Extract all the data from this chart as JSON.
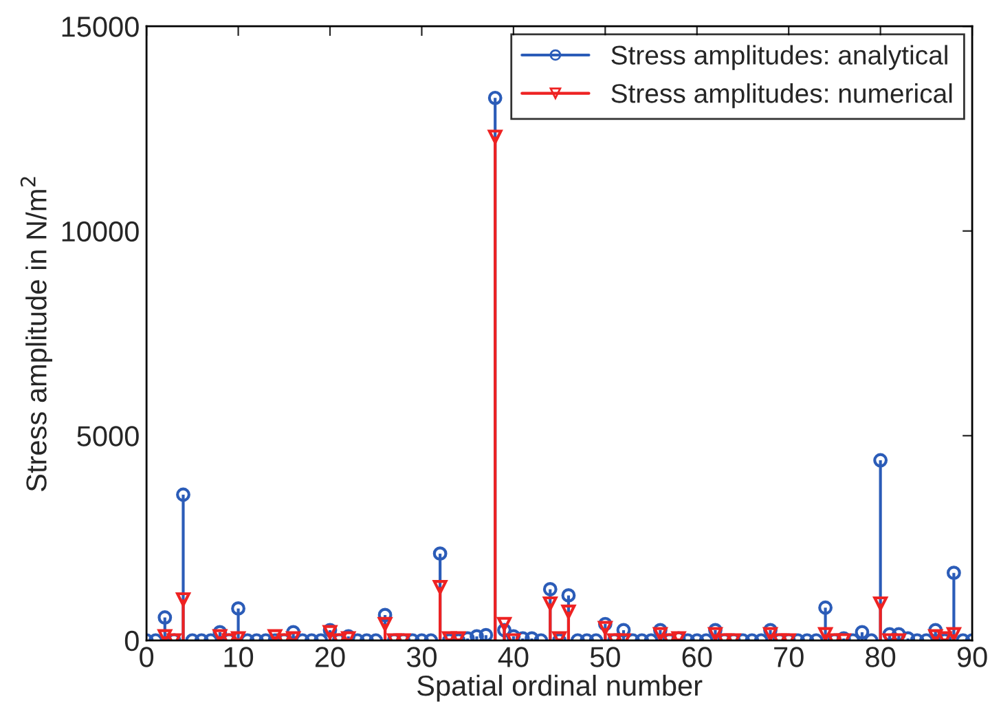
{
  "chart_data": {
    "type": "lollipop",
    "xlabel": "Spatial ordinal number",
    "ylabel": "Stress amplitude in N/m$^{2}$",
    "xlim": [
      0,
      90
    ],
    "xticks": [
      0,
      10,
      20,
      30,
      40,
      50,
      60,
      70,
      80,
      90
    ],
    "ylim": [
      0,
      15000
    ],
    "yticks": [
      0,
      5000,
      10000,
      15000
    ],
    "grid": false,
    "legend": "top right",
    "series": [
      {
        "name": "Stress amplitudes: analytical",
        "color": "#2b5cb8",
        "marker": "circle",
        "x": [
          0,
          1,
          2,
          3,
          4,
          5,
          6,
          7,
          8,
          9,
          10,
          11,
          12,
          13,
          14,
          15,
          16,
          17,
          18,
          19,
          20,
          21,
          22,
          23,
          24,
          25,
          26,
          27,
          28,
          29,
          30,
          31,
          32,
          33,
          34,
          35,
          36,
          37,
          38,
          39,
          40,
          41,
          42,
          43,
          44,
          45,
          46,
          47,
          48,
          49,
          50,
          51,
          52,
          53,
          54,
          55,
          56,
          57,
          58,
          59,
          60,
          61,
          62,
          63,
          64,
          65,
          66,
          67,
          68,
          69,
          70,
          71,
          72,
          73,
          74,
          75,
          76,
          77,
          78,
          79,
          80,
          81,
          82,
          83,
          84,
          85,
          86,
          87,
          88,
          89,
          90
        ],
        "values": [
          0,
          0,
          560,
          0,
          3560,
          0,
          0,
          0,
          200,
          0,
          780,
          0,
          0,
          0,
          0,
          0,
          200,
          0,
          0,
          0,
          250,
          0,
          100,
          0,
          0,
          0,
          620,
          0,
          0,
          0,
          0,
          0,
          2120,
          0,
          0,
          50,
          100,
          130,
          13250,
          250,
          100,
          50,
          50,
          0,
          1250,
          0,
          1100,
          0,
          0,
          0,
          400,
          0,
          250,
          0,
          0,
          0,
          250,
          0,
          50,
          0,
          0,
          0,
          250,
          0,
          0,
          0,
          0,
          0,
          250,
          0,
          0,
          0,
          0,
          0,
          800,
          0,
          50,
          0,
          200,
          0,
          4400,
          150,
          150,
          50,
          0,
          0,
          250,
          0,
          1650,
          0,
          0
        ]
      },
      {
        "name": "Stress amplitudes: numerical",
        "color": "#ee2222",
        "marker": "triangle",
        "x": [
          2,
          3,
          4,
          8,
          9,
          10,
          14,
          15,
          16,
          20,
          21,
          22,
          26,
          27,
          28,
          32,
          33,
          34,
          38,
          39,
          40,
          44,
          45,
          46,
          50,
          51,
          52,
          56,
          57,
          58,
          62,
          63,
          64,
          68,
          69,
          70,
          74,
          75,
          76,
          80,
          81,
          82,
          86,
          87,
          88
        ],
        "values": [
          100,
          0,
          1000,
          100,
          0,
          50,
          100,
          0,
          50,
          200,
          0,
          50,
          400,
          0,
          0,
          1300,
          50,
          50,
          12300,
          400,
          0,
          900,
          50,
          700,
          300,
          0,
          0,
          150,
          0,
          50,
          150,
          0,
          0,
          150,
          0,
          0,
          150,
          0,
          0,
          900,
          0,
          0,
          100,
          50,
          150
        ]
      }
    ]
  }
}
